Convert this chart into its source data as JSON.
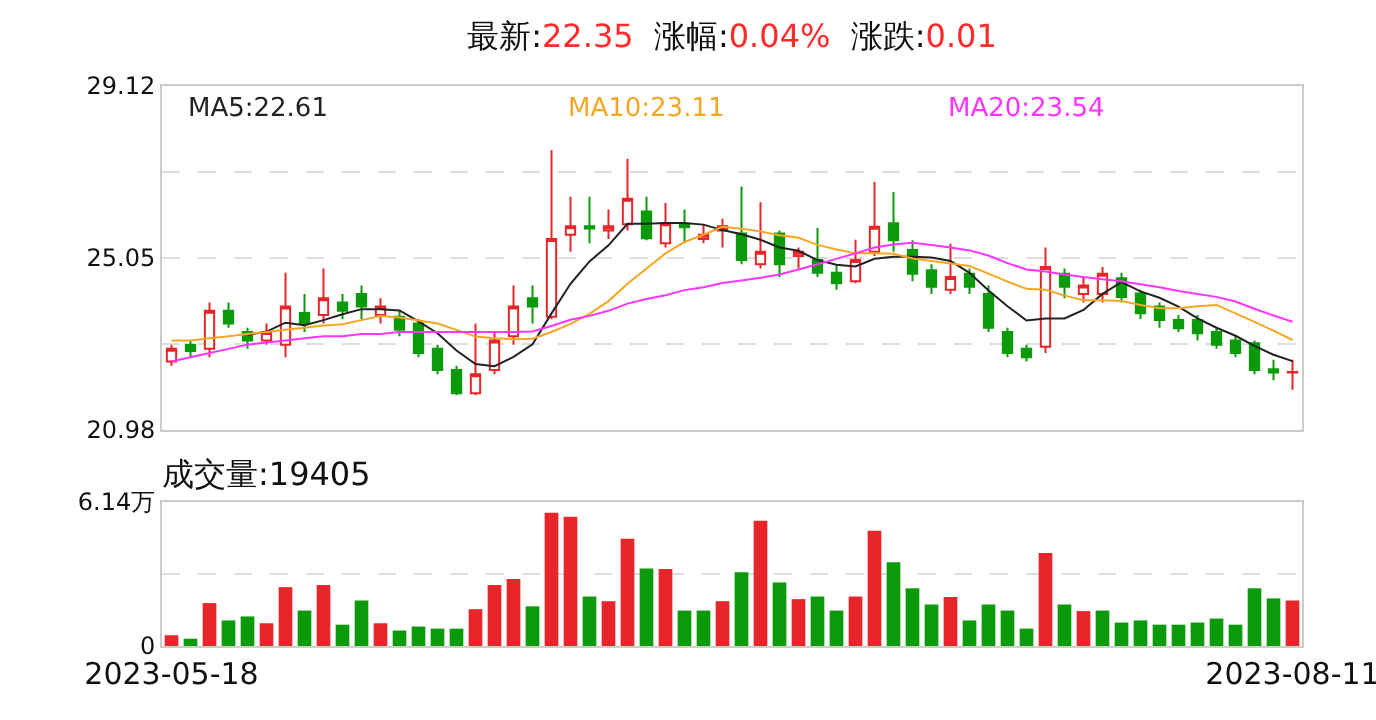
{
  "chart_data": [
    {
      "type": "candlestick",
      "title": "最新:22.35  涨幅:0.04%  涨跌:0.01",
      "grid": "y",
      "legend": "top",
      "categories": [
        null,
        null,
        null,
        null,
        null,
        null,
        null,
        null,
        null,
        null,
        null,
        null,
        null,
        null,
        null,
        null,
        null,
        null,
        null,
        null,
        null,
        null,
        null,
        null,
        null,
        null,
        null,
        null,
        null,
        null,
        null,
        null,
        null,
        null,
        null,
        null,
        null,
        null,
        null,
        null,
        null,
        null,
        null,
        null,
        null,
        null,
        null,
        null,
        null,
        null,
        null,
        null,
        null,
        null,
        null,
        null,
        null,
        null,
        null,
        null
      ],
      "ylim": [
        20.98,
        29.12
      ],
      "yticks": [
        20.98,
        {
          "value": 23.02,
          "label": null
        },
        25.05,
        {
          "value": 27.09,
          "label": null
        },
        29.12
      ],
      "ohlc": [
        [
          22.6,
          23.0,
          22.5,
          22.9
        ],
        [
          23.0,
          23.1,
          22.7,
          22.85
        ],
        [
          22.9,
          24.0,
          22.7,
          23.8
        ],
        [
          23.8,
          24.0,
          23.4,
          23.5
        ],
        [
          23.3,
          23.4,
          22.9,
          23.1
        ],
        [
          23.1,
          23.5,
          23.0,
          23.3
        ],
        [
          23.0,
          24.7,
          22.7,
          23.9
        ],
        [
          23.75,
          24.2,
          23.3,
          23.5
        ],
        [
          23.7,
          24.8,
          23.5,
          24.1
        ],
        [
          24.0,
          24.2,
          23.6,
          23.8
        ],
        [
          24.2,
          24.4,
          23.6,
          23.9
        ],
        [
          23.7,
          24.1,
          23.5,
          23.9
        ],
        [
          23.66,
          23.8,
          23.2,
          23.35
        ],
        [
          23.5,
          23.6,
          22.7,
          22.8
        ],
        [
          22.9,
          23.0,
          22.3,
          22.4
        ],
        [
          22.4,
          22.5,
          21.8,
          21.85
        ],
        [
          21.85,
          23.5,
          21.8,
          22.3
        ],
        [
          22.4,
          23.3,
          22.3,
          23.1
        ],
        [
          23.2,
          24.4,
          23.0,
          23.9
        ],
        [
          24.1,
          24.4,
          23.5,
          23.9
        ],
        [
          23.66,
          27.6,
          23.6,
          25.5
        ],
        [
          25.6,
          26.5,
          25.2,
          25.8
        ],
        [
          25.8,
          26.5,
          25.4,
          25.75
        ],
        [
          25.7,
          26.2,
          25.5,
          25.8
        ],
        [
          25.85,
          27.4,
          25.7,
          26.45
        ],
        [
          26.15,
          26.5,
          25.47,
          25.52
        ],
        [
          25.4,
          26.35,
          25.3,
          25.87
        ],
        [
          25.85,
          26.2,
          25.4,
          25.78
        ],
        [
          25.5,
          25.85,
          25.4,
          25.6
        ],
        [
          25.7,
          25.98,
          25.3,
          25.8
        ],
        [
          25.63,
          26.74,
          24.9,
          25.0
        ],
        [
          24.9,
          26.37,
          24.8,
          25.2
        ],
        [
          25.63,
          25.7,
          24.6,
          24.9
        ],
        [
          25.1,
          25.3,
          24.8,
          25.2
        ],
        [
          25.0,
          25.76,
          24.6,
          24.7
        ],
        [
          24.7,
          24.9,
          24.3,
          24.45
        ],
        [
          24.5,
          25.48,
          24.45,
          25.0
        ],
        [
          25.2,
          26.85,
          25.1,
          25.79
        ],
        [
          25.87,
          26.61,
          25.2,
          25.47
        ],
        [
          25.24,
          25.47,
          24.5,
          24.68
        ],
        [
          24.76,
          24.9,
          24.2,
          24.37
        ],
        [
          24.3,
          25.39,
          24.2,
          24.6
        ],
        [
          24.68,
          24.8,
          24.2,
          24.37
        ],
        [
          24.2,
          24.4,
          23.3,
          23.4
        ],
        [
          23.3,
          23.4,
          22.7,
          22.8
        ],
        [
          22.9,
          23.0,
          22.6,
          22.7
        ],
        [
          22.95,
          25.3,
          22.8,
          24.84
        ],
        [
          24.68,
          24.8,
          24.1,
          24.37
        ],
        [
          24.2,
          24.6,
          24.0,
          24.4
        ],
        [
          24.2,
          24.84,
          24.0,
          24.68
        ],
        [
          24.57,
          24.7,
          24.0,
          24.13
        ],
        [
          24.21,
          24.3,
          23.6,
          23.74
        ],
        [
          23.9,
          24.0,
          23.4,
          23.58
        ],
        [
          23.58,
          23.7,
          23.3,
          23.39
        ],
        [
          23.58,
          23.7,
          23.1,
          23.27
        ],
        [
          23.3,
          23.4,
          22.9,
          23.0
        ],
        [
          23.1,
          23.2,
          22.7,
          22.8
        ],
        [
          23.03,
          23.1,
          22.3,
          22.4
        ],
        [
          22.42,
          22.64,
          22.16,
          22.34
        ],
        [
          22.34,
          22.64,
          21.93,
          22.35
        ]
      ],
      "series": [
        {
          "name": "MA5:22.61",
          "type": "line",
          "color": "#222222",
          "values": [
            null,
            null,
            null,
            null,
            23.23,
            23.31,
            23.52,
            23.46,
            23.58,
            23.72,
            23.84,
            23.84,
            23.81,
            23.55,
            23.27,
            22.86,
            22.54,
            22.49,
            22.71,
            23.01,
            23.74,
            24.44,
            24.97,
            25.35,
            25.86,
            25.86,
            25.88,
            25.88,
            25.84,
            25.71,
            25.61,
            25.48,
            25.3,
            25.22,
            25.0,
            24.89,
            24.85,
            25.03,
            25.08,
            25.08,
            25.06,
            24.98,
            24.7,
            24.28,
            23.91,
            23.57,
            23.62,
            23.62,
            23.82,
            24.2,
            24.48,
            24.26,
            24.11,
            23.9,
            23.62,
            23.4,
            23.21,
            22.97,
            22.76,
            22.61
          ]
        },
        {
          "name": "MA10:23.11",
          "type": "line",
          "color": "#f5a623",
          "values": [
            23.1,
            23.1,
            23.15,
            23.2,
            23.25,
            23.3,
            23.35,
            23.4,
            23.45,
            23.48,
            23.58,
            23.68,
            23.64,
            23.57,
            23.5,
            23.35,
            23.19,
            23.15,
            23.13,
            23.14,
            23.3,
            23.49,
            23.73,
            24.03,
            24.44,
            24.8,
            25.16,
            25.43,
            25.6,
            25.79,
            25.74,
            25.68,
            25.59,
            25.53,
            25.36,
            25.25,
            25.16,
            25.16,
            25.15,
            25.04,
            24.98,
            24.92,
            24.86,
            24.68,
            24.49,
            24.32,
            24.3,
            24.16,
            24.05,
            24.05,
            24.03,
            23.94,
            23.86,
            23.86,
            23.91,
            23.94,
            23.74,
            23.54,
            23.33,
            23.11
          ]
        },
        {
          "name": "MA20:23.54",
          "type": "line",
          "color": "#ff33ff",
          "values": [
            22.6,
            22.7,
            22.8,
            22.9,
            23.0,
            23.05,
            23.1,
            23.15,
            23.2,
            23.2,
            23.25,
            23.25,
            23.3,
            23.3,
            23.3,
            23.3,
            23.3,
            23.3,
            23.3,
            23.31,
            23.44,
            23.59,
            23.68,
            23.8,
            23.97,
            24.08,
            24.17,
            24.29,
            24.36,
            24.46,
            24.52,
            24.58,
            24.66,
            24.78,
            24.9,
            25.03,
            25.16,
            25.3,
            25.37,
            25.41,
            25.36,
            25.3,
            25.23,
            25.11,
            24.93,
            24.78,
            24.73,
            24.66,
            24.6,
            24.55,
            24.5,
            24.43,
            24.36,
            24.27,
            24.2,
            24.13,
            24.02,
            23.85,
            23.69,
            23.54
          ]
        }
      ]
    },
    {
      "type": "bar",
      "title": "成交量:19405",
      "grid": "y",
      "categories": [
        "2023-05-18",
        null,
        null,
        null,
        null,
        null,
        null,
        null,
        null,
        null,
        null,
        null,
        null,
        null,
        null,
        null,
        null,
        null,
        null,
        null,
        null,
        null,
        null,
        null,
        null,
        null,
        null,
        null,
        null,
        null,
        null,
        null,
        null,
        null,
        null,
        null,
        null,
        null,
        null,
        null,
        null,
        null,
        null,
        null,
        null,
        null,
        null,
        null,
        null,
        null,
        null,
        null,
        null,
        null,
        null,
        null,
        null,
        null,
        null,
        "2023-08-11"
      ],
      "ylim": [
        0,
        6.14
      ],
      "yticks": [
        0,
        {
          "value": 3.07,
          "label": null
        },
        {
          "value": 6.14,
          "label": "6.14万"
        }
      ],
      "values": [
        0.46,
        0.31,
        1.83,
        1.09,
        1.26,
        0.97,
        2.51,
        1.51,
        2.6,
        0.91,
        1.94,
        0.97,
        0.66,
        0.83,
        0.74,
        0.74,
        1.57,
        2.6,
        2.86,
        1.69,
        5.68,
        5.51,
        2.11,
        1.91,
        4.57,
        3.31,
        3.28,
        1.51,
        1.51,
        1.91,
        3.14,
        5.34,
        2.71,
        2.0,
        2.11,
        1.51,
        2.11,
        4.91,
        3.57,
        2.46,
        1.77,
        2.09,
        1.09,
        1.77,
        1.51,
        0.74,
        3.97,
        1.77,
        1.49,
        1.51,
        1.0,
        1.09,
        0.91,
        0.91,
        1.0,
        1.17,
        0.91,
        2.46,
        2.03,
        1.94
      ],
      "colors": [
        "#e8262a",
        "#0a9a0a",
        "#e8262a",
        "#0a9a0a",
        "#0a9a0a",
        "#e8262a",
        "#e8262a",
        "#0a9a0a",
        "#e8262a",
        "#0a9a0a",
        "#0a9a0a",
        "#e8262a",
        "#0a9a0a",
        "#0a9a0a",
        "#0a9a0a",
        "#0a9a0a",
        "#e8262a",
        "#e8262a",
        "#e8262a",
        "#0a9a0a",
        "#e8262a",
        "#e8262a",
        "#0a9a0a",
        "#e8262a",
        "#e8262a",
        "#0a9a0a",
        "#e8262a",
        "#0a9a0a",
        "#0a9a0a",
        "#e8262a",
        "#0a9a0a",
        "#e8262a",
        "#0a9a0a",
        "#e8262a",
        "#0a9a0a",
        "#0a9a0a",
        "#e8262a",
        "#e8262a",
        "#0a9a0a",
        "#0a9a0a",
        "#0a9a0a",
        "#e8262a",
        "#0a9a0a",
        "#0a9a0a",
        "#0a9a0a",
        "#0a9a0a",
        "#e8262a",
        "#0a9a0a",
        "#e8262a",
        "#0a9a0a",
        "#0a9a0a",
        "#0a9a0a",
        "#0a9a0a",
        "#0a9a0a",
        "#0a9a0a",
        "#0a9a0a",
        "#0a9a0a",
        "#0a9a0a",
        "#0a9a0a",
        "#e8262a"
      ]
    }
  ]
}
